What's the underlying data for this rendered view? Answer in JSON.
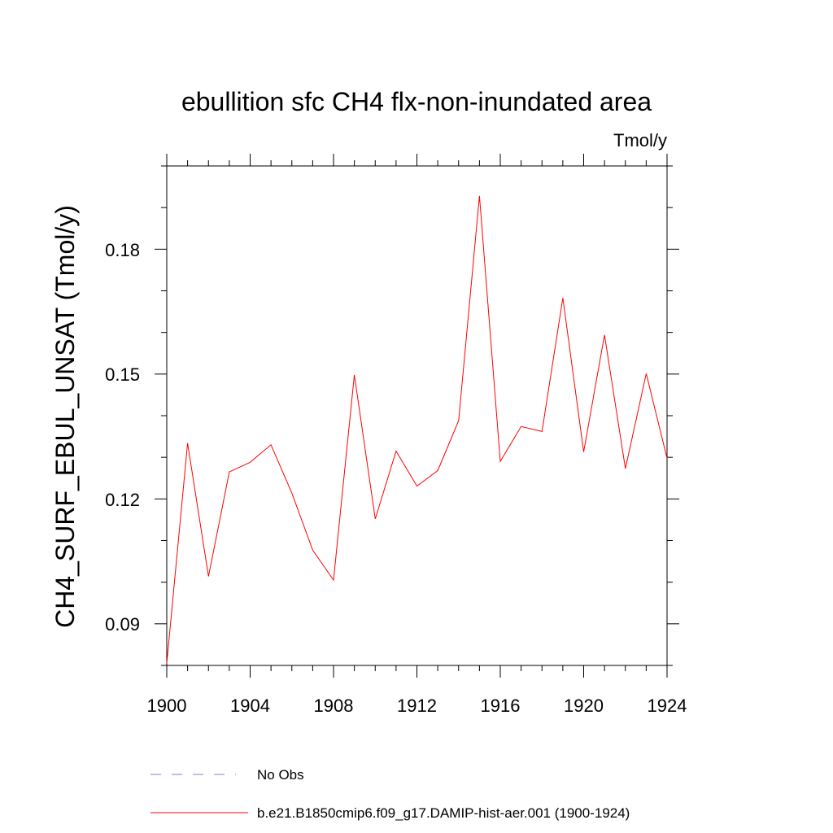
{
  "chart_data": {
    "type": "line",
    "title": "ebullition sfc CH4 flx-non-inundated area",
    "units_label": "Tmol/y",
    "ylabel": "CH4_SURF_EBUL_UNSAT  (Tmol/y)",
    "xlabel": "",
    "xlim": [
      1900,
      1924
    ],
    "ylim": [
      0.08,
      0.2
    ],
    "x_ticks": [
      "1900",
      "1904",
      "1908",
      "1912",
      "1916",
      "1920",
      "1924"
    ],
    "y_ticks": [
      "0.09",
      "0.12",
      "0.15",
      "0.18"
    ],
    "grid": false,
    "series": [
      {
        "name": "b.e21.B1850cmip6.f09_g17.DAMIP-hist-aer.001 (1900-1924)",
        "color": "#ff0000",
        "x": [
          1900,
          1901,
          1902,
          1903,
          1904,
          1905,
          1906,
          1907,
          1908,
          1909,
          1910,
          1911,
          1912,
          1913,
          1914,
          1915,
          1916,
          1917,
          1918,
          1919,
          1920,
          1921,
          1922,
          1923,
          1924
        ],
        "values": [
          0.0805,
          0.1334,
          0.1014,
          0.1265,
          0.1288,
          0.133,
          0.1214,
          0.1077,
          0.1005,
          0.1498,
          0.1152,
          0.1315,
          0.1231,
          0.1268,
          0.1388,
          0.1928,
          0.129,
          0.1374,
          0.1362,
          0.1683,
          0.1313,
          0.1594,
          0.1273,
          0.1501,
          0.1298
        ]
      }
    ],
    "legend": {
      "placement": "bottom",
      "entries": [
        {
          "label": "No Obs",
          "color": "#7f7fd0",
          "style": "dashed"
        },
        {
          "label": "b.e21.B1850cmip6.f09_g17.DAMIP-hist-aer.001 (1900-1924)",
          "color": "#ff0000",
          "style": "solid"
        }
      ]
    }
  }
}
